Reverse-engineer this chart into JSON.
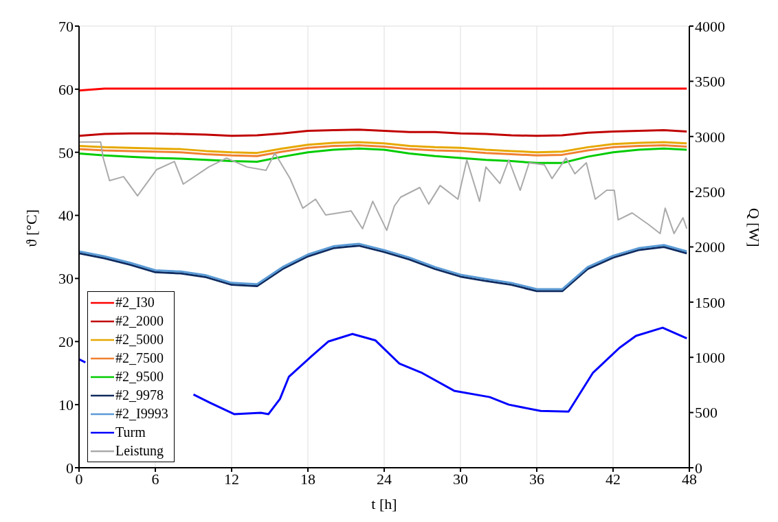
{
  "chart_data": {
    "type": "line",
    "xlabel": "t [h]",
    "ylabel": "ϑ [°C]",
    "y2label": "Q [W]",
    "x": [
      0,
      2,
      4,
      6,
      8,
      10,
      12,
      14,
      16,
      18,
      20,
      22,
      24,
      26,
      28,
      30,
      32,
      34,
      36,
      38,
      40,
      42,
      44,
      46,
      47.8
    ],
    "xlim": [
      0,
      48
    ],
    "xticks": [
      0,
      6,
      12,
      18,
      24,
      30,
      36,
      42,
      48
    ],
    "ylim": [
      0,
      70
    ],
    "yticks": [
      0,
      10,
      20,
      30,
      40,
      50,
      60,
      70
    ],
    "y2lim": [
      0,
      4000
    ],
    "y2ticks": [
      0,
      500,
      1000,
      1500,
      2000,
      2500,
      3000,
      3500,
      4000
    ],
    "grid": true,
    "legend": "bottom left",
    "marker": "none",
    "line_style": "solid",
    "series": [
      {
        "name": "#2_I30",
        "color": "#ff0000",
        "values": [
          59.8,
          60.1,
          60.1,
          60.1,
          60.1,
          60.1,
          60.1,
          60.1,
          60.1,
          60.1,
          60.1,
          60.1,
          60.1,
          60.1,
          60.1,
          60.1,
          60.1,
          60.1,
          60.1,
          60.1,
          60.1,
          60.1,
          60.1,
          60.1,
          60.1
        ]
      },
      {
        "name": "#2_2000",
        "color": "#c00000",
        "values": [
          52.6,
          52.9,
          53,
          53,
          52.9,
          52.8,
          52.6,
          52.7,
          53,
          53.4,
          53.5,
          53.6,
          53.4,
          53.2,
          53.2,
          53,
          52.9,
          52.7,
          52.6,
          52.7,
          53.1,
          53.3,
          53.4,
          53.5,
          53.3
        ]
      },
      {
        "name": "#2_5000",
        "color": "#e6a800",
        "values": [
          51,
          50.8,
          50.7,
          50.6,
          50.5,
          50.2,
          50,
          49.9,
          50.6,
          51.2,
          51.5,
          51.6,
          51.4,
          51,
          50.8,
          50.7,
          50.4,
          50.2,
          50,
          50.1,
          50.8,
          51.3,
          51.5,
          51.6,
          51.4
        ]
      },
      {
        "name": "#2_7500",
        "color": "#f08030",
        "values": [
          50.5,
          50.3,
          50.2,
          50.1,
          50,
          49.7,
          49.5,
          49.4,
          50.1,
          50.7,
          51,
          51.1,
          50.9,
          50.5,
          50.3,
          50.2,
          49.9,
          49.7,
          49.5,
          49.6,
          50.3,
          50.8,
          51,
          51.1,
          50.9
        ]
      },
      {
        "name": "#2_9500",
        "color": "#00cc00",
        "values": [
          49.8,
          49.5,
          49.3,
          49.1,
          49,
          48.8,
          48.6,
          48.5,
          49.3,
          50,
          50.4,
          50.6,
          50.4,
          49.8,
          49.4,
          49.1,
          48.8,
          48.6,
          48.3,
          48.3,
          49.3,
          50,
          50.4,
          50.6,
          50.4
        ]
      },
      {
        "name": "#2_9978",
        "color": "#0f2a5e",
        "values": [
          34,
          33.2,
          32.2,
          31,
          30.8,
          30.2,
          29,
          28.8,
          31.5,
          33.5,
          34.8,
          35.2,
          34.2,
          33,
          31.5,
          30.3,
          29.6,
          29,
          28,
          28,
          31.5,
          33.3,
          34.5,
          35,
          34
        ]
      },
      {
        "name": "#2_I9993",
        "color": "#5b9bd5",
        "values": [
          34.3,
          33.5,
          32.5,
          31.3,
          31.1,
          30.5,
          29.3,
          29.1,
          31.8,
          33.8,
          35.1,
          35.5,
          34.5,
          33.3,
          31.8,
          30.6,
          29.9,
          29.3,
          28.3,
          28.3,
          31.8,
          33.6,
          34.8,
          35.3,
          34.3
        ]
      },
      {
        "name": "Turm",
        "color": "#0000ff",
        "x": [
          0,
          0.5,
          5,
          9,
          10.3,
          12.2,
          14.3,
          14.9,
          15.8,
          16.5,
          18.3,
          19.6,
          21.5,
          23.3,
          25.2,
          27,
          29.5,
          32.3,
          33.8,
          36.3,
          38.5,
          40.4,
          42.5,
          43.8,
          45.9,
          47.8
        ],
        "values": [
          17.2,
          16.7,
          null,
          11.6,
          10.3,
          8.5,
          8.7,
          8.5,
          10.9,
          14.4,
          17.7,
          20,
          21.2,
          20.2,
          16.5,
          15,
          12.2,
          11.2,
          10,
          9,
          8.9,
          15,
          19,
          20.9,
          22.2,
          20.5
        ]
      },
      {
        "name": "Leistung",
        "color": "#aaaaaa",
        "axis": "y2",
        "x": [
          0,
          1.7,
          1.9,
          2.4,
          3.5,
          4.6,
          6.1,
          7.5,
          8.2,
          10.2,
          11.6,
          13.2,
          14.7,
          15.4,
          16.6,
          17.6,
          18.6,
          19.4,
          21.4,
          22.3,
          23.1,
          24.2,
          24.8,
          25.3,
          26.8,
          27.5,
          28.4,
          29.8,
          30.5,
          31.5,
          32,
          33.1,
          33.8,
          34.7,
          35.4,
          36.6,
          37.2,
          38.3,
          39,
          39.9,
          40.6,
          41.5,
          42.1,
          42.4,
          43.5,
          44.8,
          45.7,
          46.1,
          46.8,
          47.5,
          47.8
        ],
        "values": [
          2950,
          2950,
          2805,
          2600,
          2637,
          2463,
          2700,
          2774,
          2569,
          2724,
          2805,
          2724,
          2693,
          2849,
          2619,
          2351,
          2432,
          2289,
          2326,
          2165,
          2413,
          2150,
          2370,
          2451,
          2538,
          2388,
          2556,
          2432,
          2787,
          2413,
          2724,
          2575,
          2787,
          2513,
          2762,
          2743,
          2619,
          2805,
          2662,
          2762,
          2432,
          2513,
          2513,
          2245,
          2308,
          2202,
          2121,
          2351,
          2121,
          2264,
          2165
        ]
      }
    ]
  }
}
